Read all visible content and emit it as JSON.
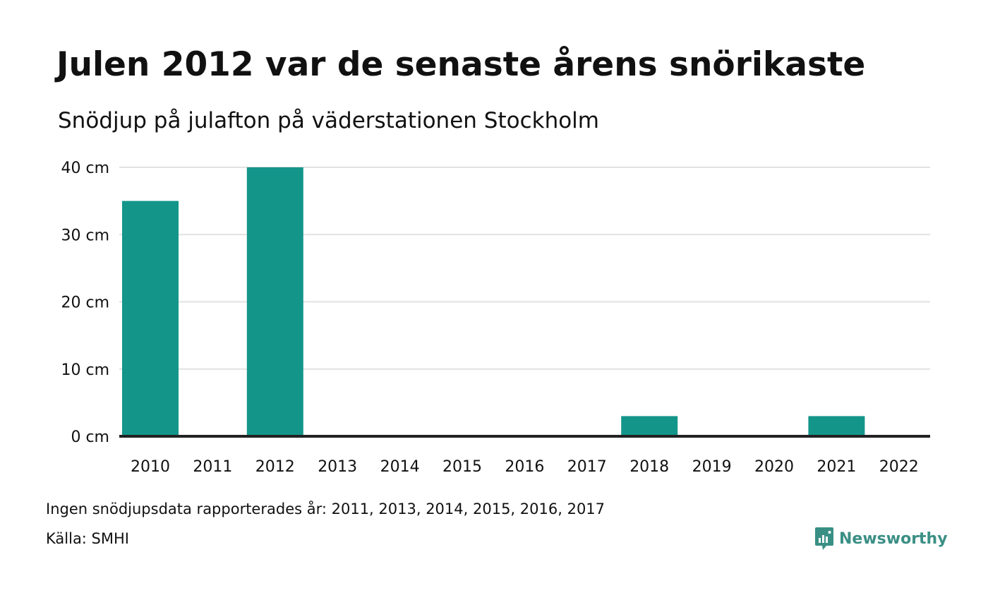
{
  "title": "Julen 2012 var de senaste årens snörikaste",
  "subtitle": "Snödjup på julafton på väderstationen Stockholm",
  "note": "Ingen snödjupsdata rapporterades år: 2011, 2013, 2014, 2015, 2016, 2017",
  "source": "Källa: SMHI",
  "brand": {
    "name": "Newsworthy",
    "icon": "newsworthy-logo-icon",
    "color": "#3a8f85"
  },
  "colors": {
    "bar": "#14958a",
    "grid": "#e2e2e2",
    "axis": "#222222",
    "text": "#111111"
  },
  "chart_data": {
    "type": "bar",
    "categories": [
      "2010",
      "2011",
      "2012",
      "2013",
      "2014",
      "2015",
      "2016",
      "2017",
      "2018",
      "2019",
      "2020",
      "2021",
      "2022"
    ],
    "series": [
      {
        "values": [
          35,
          null,
          40,
          null,
          null,
          null,
          null,
          null,
          3,
          0,
          0,
          3,
          0
        ]
      }
    ],
    "ylim": [
      0,
      40
    ],
    "yticks": [
      0,
      10,
      20,
      30,
      40
    ],
    "ytick_labels": [
      "0 cm",
      "10 cm",
      "20 cm",
      "30 cm",
      "40 cm"
    ],
    "grid": true,
    "legend": "none"
  }
}
